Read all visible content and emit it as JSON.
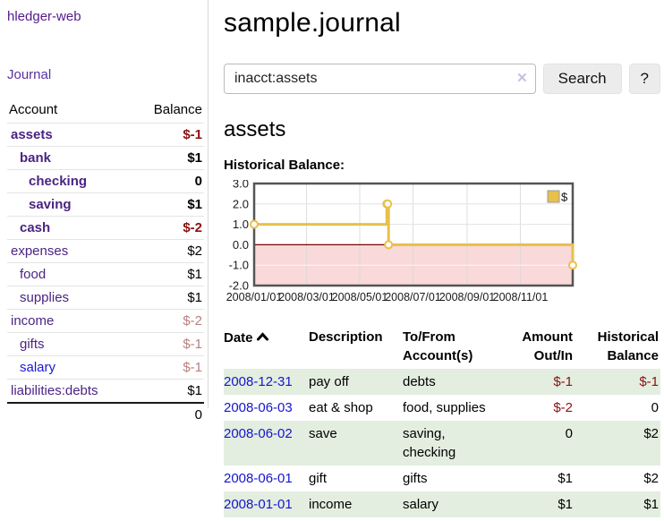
{
  "app": {
    "brand": "hledger-web"
  },
  "colors": {
    "accent_purple": "#551a8b",
    "link_blue": "#1515cf",
    "negative_strong": "#8b1010",
    "negative_soft": "#b97f7f",
    "row_shade_green": "#e3eee0",
    "series_gold": "#e8c04a",
    "negative_region_pink": "#f9d9d9",
    "zero_line_red": "#7a0000"
  },
  "sidebar": {
    "journal_link": "Journal",
    "accounts_table": {
      "headers": {
        "account": "Account",
        "balance": "Balance"
      },
      "rows": [
        {
          "name": "assets",
          "depth": 0,
          "emphasis": true,
          "balance": "$-1",
          "balance_tone": "neg-strong"
        },
        {
          "name": "bank",
          "depth": 1,
          "emphasis": true,
          "balance": "$1"
        },
        {
          "name": "checking",
          "depth": 2,
          "emphasis": true,
          "balance": "0"
        },
        {
          "name": "saving",
          "depth": 2,
          "emphasis": true,
          "balance": "$1"
        },
        {
          "name": "cash",
          "depth": 1,
          "emphasis": true,
          "balance": "$-2",
          "balance_tone": "neg-strong"
        },
        {
          "name": "expenses",
          "depth": 0,
          "emphasis": false,
          "balance": "$2"
        },
        {
          "name": "food",
          "depth": 1,
          "emphasis": false,
          "balance": "$1"
        },
        {
          "name": "supplies",
          "depth": 1,
          "emphasis": false,
          "balance": "$1"
        },
        {
          "name": "income",
          "depth": 0,
          "emphasis": false,
          "balance": "$-2",
          "balance_tone": "neg-soft"
        },
        {
          "name": "gifts",
          "depth": 1,
          "emphasis": false,
          "balance": "$-1",
          "balance_tone": "neg-soft"
        },
        {
          "name": "salary",
          "depth": 1,
          "emphasis": false,
          "balance": "$-1",
          "balance_tone": "neg-soft",
          "link_blue": true
        },
        {
          "name": "liabilities:debts",
          "depth": 0,
          "emphasis": false,
          "balance": "$1"
        }
      ],
      "total": "0"
    }
  },
  "main": {
    "title": "sample.journal",
    "search": {
      "value": "inacct:assets",
      "clear_icon": "✕",
      "button_label": "Search",
      "help_label": "?"
    },
    "account_heading": "assets",
    "chart_label": "Historical Balance:",
    "register_table": {
      "headers": {
        "date": "Date",
        "description": "Description",
        "accounts": "To/From Account(s)",
        "amount": "Amount Out/In",
        "balance": "Historical Balance"
      },
      "sort_column": "date",
      "sort_direction": "ascending",
      "rows": [
        {
          "date": "2008-12-31",
          "description": "pay off",
          "accounts": "debts",
          "amount": "$-1",
          "amount_tone": "neg",
          "balance": "$-1",
          "balance_tone": "neg",
          "shaded": true
        },
        {
          "date": "2008-06-03",
          "description": "eat & shop",
          "accounts": "food, supplies",
          "amount": "$-2",
          "amount_tone": "neg",
          "balance": "0"
        },
        {
          "date": "2008-06-02",
          "description": "save",
          "accounts": "saving, checking",
          "amount": "0",
          "balance": "$2",
          "shaded": true
        },
        {
          "date": "2008-06-01",
          "description": "gift",
          "accounts": "gifts",
          "amount": "$1",
          "balance": "$2"
        },
        {
          "date": "2008-01-01",
          "description": "income",
          "accounts": "salary",
          "amount": "$1",
          "balance": "$1",
          "shaded": true
        }
      ]
    }
  },
  "chart_data": {
    "type": "line",
    "step": true,
    "title": "Historical Balance",
    "series": [
      {
        "name": "$",
        "color": "#e8c04a",
        "points": [
          [
            "2008-01-01",
            1
          ],
          [
            "2008-06-01",
            2
          ],
          [
            "2008-06-02",
            2
          ],
          [
            "2008-06-03",
            0
          ],
          [
            "2008-12-31",
            -1
          ]
        ]
      }
    ],
    "x_domain": [
      "2008/01/01",
      "2008/12/31"
    ],
    "ylim": [
      -2,
      3
    ],
    "y_ticks": [
      "3.0",
      "2.0",
      "1.0",
      "0.0",
      "-1.0",
      "-2.0"
    ],
    "x_ticks": [
      "2008/01/01",
      "2008/03/01",
      "2008/05/01",
      "2008/07/01",
      "2008/09/01",
      "2008/11/01"
    ],
    "grid": true,
    "legend_position": "top-right",
    "negative_region_shaded": true
  }
}
